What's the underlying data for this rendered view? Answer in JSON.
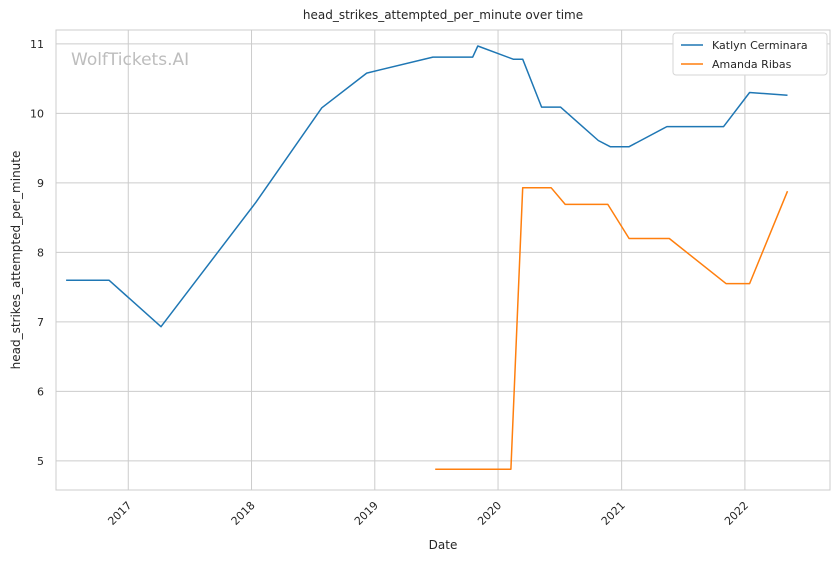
{
  "watermark": "WolfTickets.AI",
  "chart_data": {
    "type": "line",
    "title": "head_strikes_attempted_per_minute over time",
    "xlabel": "Date",
    "ylabel": "head_strikes_attempted_per_minute",
    "x_ticks": [
      "2017",
      "2018",
      "2019",
      "2020",
      "2021",
      "2022"
    ],
    "y_ticks": [
      5,
      6,
      7,
      8,
      9,
      10,
      11
    ],
    "xlim": [
      "2016-06-01",
      "2022-09-10"
    ],
    "ylim": [
      4.58,
      11.2
    ],
    "grid": true,
    "legend_position": "top-right",
    "series": [
      {
        "name": "Katlyn Cerminara",
        "color": "#1f77b4",
        "points": [
          [
            "2016-07-01",
            7.6
          ],
          [
            "2016-11-05",
            7.6
          ],
          [
            "2017-04-08",
            6.93
          ],
          [
            "2018-01-14",
            8.72
          ],
          [
            "2018-07-28",
            10.08
          ],
          [
            "2018-12-08",
            10.58
          ],
          [
            "2019-06-22",
            10.81
          ],
          [
            "2019-10-18",
            10.81
          ],
          [
            "2019-11-02",
            10.97
          ],
          [
            "2020-02-15",
            10.78
          ],
          [
            "2020-03-14",
            10.78
          ],
          [
            "2020-05-09",
            10.09
          ],
          [
            "2020-07-04",
            10.09
          ],
          [
            "2020-10-24",
            9.61
          ],
          [
            "2020-11-28",
            9.52
          ],
          [
            "2021-01-23",
            9.52
          ],
          [
            "2021-05-15",
            9.81
          ],
          [
            "2021-10-30",
            9.81
          ],
          [
            "2022-01-15",
            10.3
          ],
          [
            "2022-05-07",
            10.26
          ]
        ]
      },
      {
        "name": "Amanda Ribas",
        "color": "#ff7f0e",
        "points": [
          [
            "2019-06-29",
            4.88
          ],
          [
            "2020-02-08",
            4.88
          ],
          [
            "2020-03-14",
            8.93
          ],
          [
            "2020-06-06",
            8.93
          ],
          [
            "2020-07-18",
            8.69
          ],
          [
            "2020-11-21",
            8.69
          ],
          [
            "2021-01-23",
            8.2
          ],
          [
            "2021-05-22",
            8.2
          ],
          [
            "2021-11-06",
            7.55
          ],
          [
            "2022-01-15",
            7.55
          ],
          [
            "2022-05-07",
            8.88
          ]
        ]
      }
    ]
  }
}
